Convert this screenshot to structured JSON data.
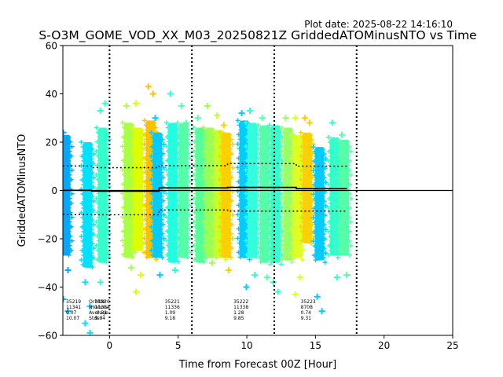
{
  "plot_date": "Plot date: 2025-08-22 14:16:10",
  "chart_data": {
    "type": "scatter",
    "title": "S-O3M_GOME_VOD_XX_M03_20250821Z GriddedATOMinusNTO vs Time",
    "xlabel": "Time from Forecast 00Z [Hour]",
    "ylabel": "GriddedATOMinusNTO",
    "xlim": [
      -3.4,
      25
    ],
    "ylim": [
      -60,
      60
    ],
    "xticks": [
      0,
      5,
      10,
      15,
      20,
      25
    ],
    "yticks": [
      -60,
      -40,
      -20,
      0,
      20,
      40,
      60
    ],
    "grid": false,
    "vlines": [
      0,
      6,
      12,
      18
    ],
    "zero_line": 0,
    "strips": [
      {
        "x": -3.2,
        "lo": -27,
        "hi": 23,
        "color": "#00a8ff",
        "outliers": [
          24,
          -33,
          -45,
          -50
        ]
      },
      {
        "x": -1.6,
        "lo": -32,
        "hi": 20,
        "color": "#00e0ff",
        "outliers": [
          -38,
          -48,
          -55,
          -59
        ]
      },
      {
        "x": -0.5,
        "lo": -30,
        "hi": 26,
        "color": "#33ffcc",
        "outliers": [
          33,
          36,
          -38
        ]
      },
      {
        "x": 1.4,
        "lo": -28,
        "hi": 28,
        "color": "#aaff44",
        "outliers": [
          35,
          -32
        ]
      },
      {
        "x": 2.1,
        "lo": -25,
        "hi": 26,
        "color": "#ddff00",
        "outliers": [
          36,
          -35,
          -42
        ]
      },
      {
        "x": 3.0,
        "lo": -28,
        "hi": 29,
        "color": "#ffc000",
        "outliers": [
          43,
          40
        ]
      },
      {
        "x": 3.5,
        "lo": -28,
        "hi": 24,
        "color": "#00ccff",
        "outliers": [
          30,
          -35
        ]
      },
      {
        "x": 4.6,
        "lo": -30,
        "hi": 28,
        "color": "#22ffe0",
        "outliers": [
          40,
          -33
        ]
      },
      {
        "x": 5.4,
        "lo": -28,
        "hi": 28,
        "color": "#55ffaa",
        "outliers": [
          35,
          28
        ]
      },
      {
        "x": 6.6,
        "lo": -30,
        "hi": 26,
        "color": "#55ff99",
        "outliers": [
          30
        ]
      },
      {
        "x": 7.3,
        "lo": -28,
        "hi": 26,
        "color": "#99ff55",
        "outliers": [
          35,
          -30
        ]
      },
      {
        "x": 8.0,
        "lo": -28,
        "hi": 25,
        "color": "#ccff22",
        "outliers": [
          31
        ]
      },
      {
        "x": 8.5,
        "lo": -28,
        "hi": 24,
        "color": "#ffd000",
        "outliers": [
          27,
          -33
        ]
      },
      {
        "x": 9.8,
        "lo": -28,
        "hi": 29,
        "color": "#00ccff",
        "outliers": [
          32,
          -40
        ]
      },
      {
        "x": 10.4,
        "lo": -28,
        "hi": 28,
        "color": "#33ffdd",
        "outliers": [
          33,
          -35
        ]
      },
      {
        "x": 11.3,
        "lo": -30,
        "hi": 27,
        "color": "#55ffaa",
        "outliers": [
          30,
          -36
        ]
      },
      {
        "x": 12.1,
        "lo": -30,
        "hi": 27,
        "color": "#33ffcc",
        "outliers": [
          -38,
          -42
        ]
      },
      {
        "x": 13.0,
        "lo": -29,
        "hi": 26,
        "color": "#99ff66",
        "outliers": [
          30
        ]
      },
      {
        "x": 13.7,
        "lo": -28,
        "hi": 23,
        "color": "#ddff22",
        "outliers": [
          30,
          -36,
          -43
        ]
      },
      {
        "x": 14.4,
        "lo": -22,
        "hi": 24,
        "color": "#ffd000",
        "outliers": [
          30,
          28
        ]
      },
      {
        "x": 15.3,
        "lo": -29,
        "hi": 18,
        "color": "#00ccff",
        "outliers": [
          -44,
          -50
        ]
      },
      {
        "x": 16.4,
        "lo": -27,
        "hi": 22,
        "color": "#33ffcc",
        "outliers": [
          28,
          -36
        ]
      },
      {
        "x": 17.1,
        "lo": -27,
        "hi": 21,
        "color": "#55ffaa",
        "outliers": [
          23,
          -35
        ]
      }
    ],
    "mean_steps": [
      {
        "x0": -3.4,
        "x1": -1.3,
        "y": 0.07
      },
      {
        "x0": -1.3,
        "x1": 3.6,
        "y": -0.31
      },
      {
        "x0": 3.6,
        "x1": 8.6,
        "y": 1.09
      },
      {
        "x0": 8.6,
        "x1": 13.6,
        "y": 1.28
      },
      {
        "x0": 13.6,
        "x1": 17.3,
        "y": 0.74
      }
    ],
    "stdev_steps": [
      {
        "x0": -3.4,
        "x1": -1.3,
        "y": 10.07
      },
      {
        "x0": -1.3,
        "x1": 3.6,
        "y": 9.74
      },
      {
        "x0": 3.6,
        "x1": 8.6,
        "y": 9.18
      },
      {
        "x0": 8.6,
        "x1": 13.6,
        "y": 9.85
      },
      {
        "x0": 13.6,
        "x1": 17.3,
        "y": 9.31
      }
    ],
    "stats_labels": [
      "OrbitNr",
      "NValues",
      "Average",
      "Stdev"
    ],
    "stats_label_x": -1.5,
    "stats": [
      {
        "x": -3.4,
        "orbit": "35219",
        "nvalues": "11341",
        "average": "0.07",
        "stdev": "10.07"
      },
      {
        "x": -1.3,
        "orbit": "35220",
        "nvalues": "11354",
        "average": "-0.31",
        "stdev": "9.74"
      },
      {
        "x": 3.8,
        "orbit": "35221",
        "nvalues": "11336",
        "average": "1.09",
        "stdev": "9.18"
      },
      {
        "x": 8.8,
        "orbit": "35222",
        "nvalues": "11338",
        "average": "1.28",
        "stdev": "9.85"
      },
      {
        "x": 13.7,
        "orbit": "35223",
        "nvalues": "8708",
        "average": "0.74",
        "stdev": "9.31"
      }
    ]
  }
}
